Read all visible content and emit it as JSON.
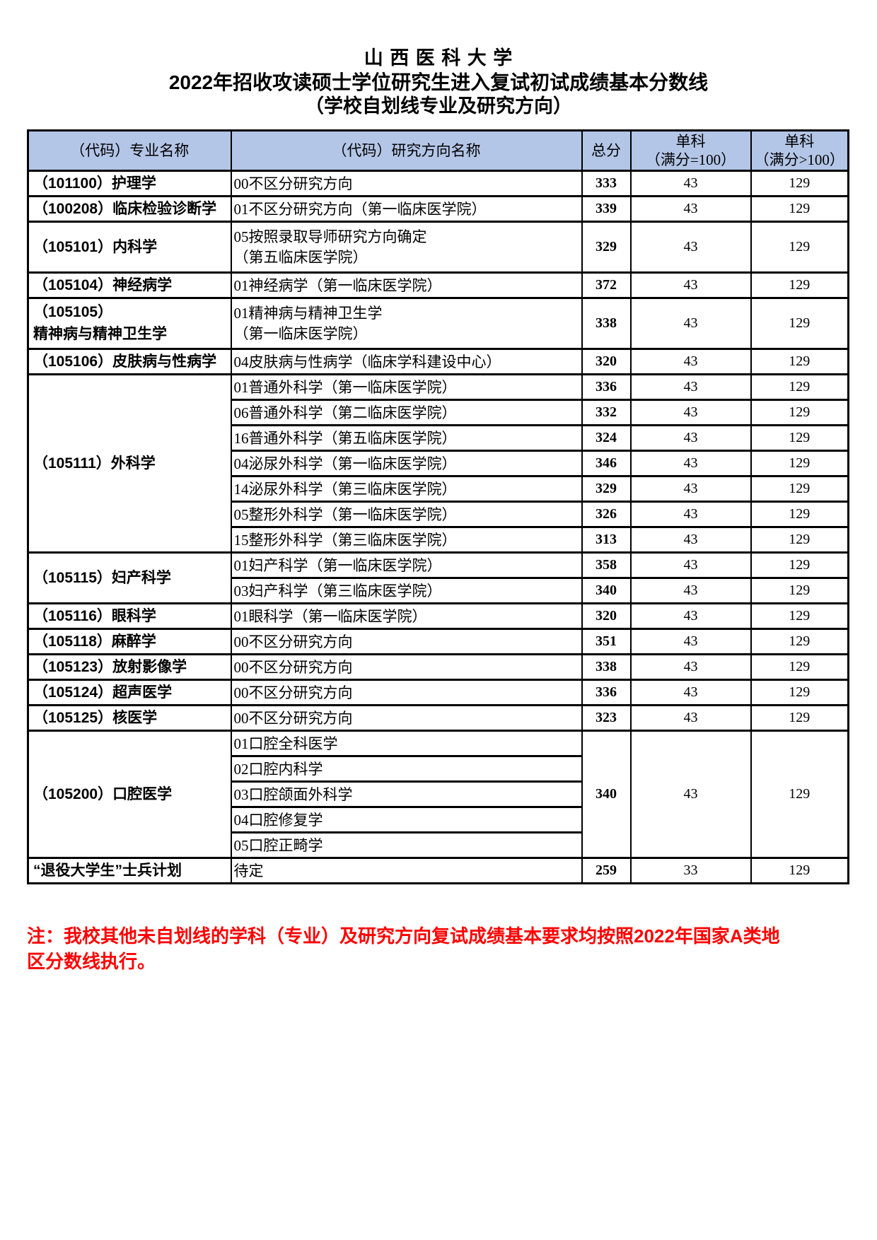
{
  "colors": {
    "header_bg": "#B4C6E7",
    "note_color": "#FF0000",
    "border": "#000000"
  },
  "titles": {
    "line1": "山 西 医 科 大 学",
    "line2": "2022年招收攻读硕士学位研究生进入复试初试成绩基本分数线",
    "line3": "（学校自划线专业及研究方向）"
  },
  "note": "注：我校其他未自划线的学科（专业）及研究方向复试成绩基本要求均按照2022年国家A类地区分数线执行。",
  "table": {
    "headers": {
      "major": "（代码）专业名称",
      "direction": "（代码）研究方向名称",
      "total": "总分",
      "single_eq100": "单科\n（满分=100）",
      "single_gt100": "单科\n（满分>100）"
    },
    "groups": [
      {
        "major": "（101100）护理学",
        "rows": [
          {
            "direction": "00不区分研究方向",
            "total": "333",
            "single_eq100": "43",
            "single_gt100": "129"
          }
        ]
      },
      {
        "major": "（100208）临床检验诊断学",
        "rows": [
          {
            "direction": "01不区分研究方向（第一临床医学院）",
            "total": "339",
            "single_eq100": "43",
            "single_gt100": "129"
          }
        ]
      },
      {
        "major": "（105101）内科学",
        "rows": [
          {
            "direction": "05按照录取导师研究方向确定\n（第五临床医学院）",
            "total": "329",
            "single_eq100": "43",
            "single_gt100": "129",
            "tall": true
          }
        ]
      },
      {
        "major": "（105104）神经病学",
        "rows": [
          {
            "direction": "01神经病学（第一临床医学院）",
            "total": "372",
            "single_eq100": "43",
            "single_gt100": "129"
          }
        ]
      },
      {
        "major": "（105105）\n精神病与精神卫生学",
        "rows": [
          {
            "direction": "01精神病与精神卫生学\n（第一临床医学院）",
            "total": "338",
            "single_eq100": "43",
            "single_gt100": "129",
            "tall": true
          }
        ]
      },
      {
        "major": "（105106）皮肤病与性病学",
        "rows": [
          {
            "direction": "04皮肤病与性病学（临床学科建设中心）",
            "total": "320",
            "single_eq100": "43",
            "single_gt100": "129"
          }
        ]
      },
      {
        "major": "（105111）外科学",
        "rows": [
          {
            "direction": "01普通外科学（第一临床医学院）",
            "total": "336",
            "single_eq100": "43",
            "single_gt100": "129"
          },
          {
            "direction": "06普通外科学（第二临床医学院）",
            "total": "332",
            "single_eq100": "43",
            "single_gt100": "129"
          },
          {
            "direction": "16普通外科学（第五临床医学院）",
            "total": "324",
            "single_eq100": "43",
            "single_gt100": "129"
          },
          {
            "direction": "04泌尿外科学（第一临床医学院）",
            "total": "346",
            "single_eq100": "43",
            "single_gt100": "129"
          },
          {
            "direction": "14泌尿外科学（第三临床医学院）",
            "total": "329",
            "single_eq100": "43",
            "single_gt100": "129"
          },
          {
            "direction": "05整形外科学（第一临床医学院）",
            "total": "326",
            "single_eq100": "43",
            "single_gt100": "129"
          },
          {
            "direction": "15整形外科学（第三临床医学院）",
            "total": "313",
            "single_eq100": "43",
            "single_gt100": "129"
          }
        ]
      },
      {
        "major": "（105115）妇产科学",
        "rows": [
          {
            "direction": "01妇产科学（第一临床医学院）",
            "total": "358",
            "single_eq100": "43",
            "single_gt100": "129"
          },
          {
            "direction": "03妇产科学（第三临床医学院）",
            "total": "340",
            "single_eq100": "43",
            "single_gt100": "129"
          }
        ]
      },
      {
        "major": "（105116）眼科学",
        "rows": [
          {
            "direction": "01眼科学（第一临床医学院）",
            "total": "320",
            "single_eq100": "43",
            "single_gt100": "129"
          }
        ]
      },
      {
        "major": "（105118）麻醉学",
        "rows": [
          {
            "direction": "00不区分研究方向",
            "total": "351",
            "single_eq100": "43",
            "single_gt100": "129"
          }
        ]
      },
      {
        "major": "（105123）放射影像学",
        "rows": [
          {
            "direction": "00不区分研究方向",
            "total": "338",
            "single_eq100": "43",
            "single_gt100": "129"
          }
        ]
      },
      {
        "major": "（105124）超声医学",
        "rows": [
          {
            "direction": "00不区分研究方向",
            "total": "336",
            "single_eq100": "43",
            "single_gt100": "129"
          }
        ]
      },
      {
        "major": "（105125）核医学",
        "rows": [
          {
            "direction": "00不区分研究方向",
            "total": "323",
            "single_eq100": "43",
            "single_gt100": "129"
          }
        ]
      },
      {
        "major": "（105200）口腔医学",
        "merged_scores": {
          "total": "340",
          "single_eq100": "43",
          "single_gt100": "129"
        },
        "rows": [
          {
            "direction": "01口腔全科医学"
          },
          {
            "direction": "02口腔内科学"
          },
          {
            "direction": "03口腔颌面外科学"
          },
          {
            "direction": "04口腔修复学"
          },
          {
            "direction": "05口腔正畸学"
          }
        ]
      },
      {
        "major": "“退役大学生”士兵计划",
        "rows": [
          {
            "direction": "待定",
            "total": "259",
            "single_eq100": "33",
            "single_gt100": "129"
          }
        ]
      }
    ]
  }
}
